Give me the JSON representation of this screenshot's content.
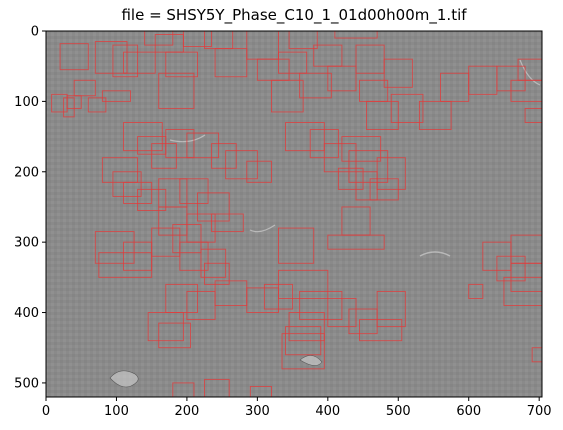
{
  "title": "file = SHSY5Y_Phase_C10_1_01d00h00m_1.tif",
  "colors": {
    "box": "#e03c3c",
    "background": "#8b8b8b"
  },
  "chart_data": {
    "type": "image-with-bounding-boxes",
    "xlim": [
      0,
      704
    ],
    "ylim": [
      520,
      0
    ],
    "x_ticks": [
      0,
      100,
      200,
      300,
      400,
      500,
      600,
      700
    ],
    "y_ticks": [
      0,
      100,
      200,
      300,
      400,
      500
    ],
    "boxes": [
      [
        20,
        18,
        60,
        55
      ],
      [
        70,
        15,
        115,
        60
      ],
      [
        95,
        20,
        130,
        65
      ],
      [
        140,
        0,
        180,
        20
      ],
      [
        155,
        5,
        195,
        30
      ],
      [
        195,
        0,
        235,
        22
      ],
      [
        110,
        30,
        155,
        60
      ],
      [
        170,
        30,
        215,
        65
      ],
      [
        160,
        60,
        210,
        110
      ],
      [
        40,
        70,
        70,
        92
      ],
      [
        80,
        85,
        120,
        100
      ],
      [
        8,
        90,
        30,
        115
      ],
      [
        25,
        95,
        40,
        122
      ],
      [
        30,
        92,
        50,
        110
      ],
      [
        60,
        95,
        85,
        115
      ],
      [
        225,
        0,
        265,
        25
      ],
      [
        240,
        25,
        285,
        65
      ],
      [
        285,
        0,
        330,
        40
      ],
      [
        300,
        40,
        345,
        70
      ],
      [
        330,
        30,
        370,
        60
      ],
      [
        345,
        0,
        385,
        25
      ],
      [
        380,
        20,
        420,
        50
      ],
      [
        410,
        0,
        470,
        10
      ],
      [
        440,
        20,
        480,
        60
      ],
      [
        480,
        40,
        520,
        80
      ],
      [
        400,
        50,
        440,
        85
      ],
      [
        360,
        60,
        405,
        95
      ],
      [
        320,
        70,
        365,
        115
      ],
      [
        445,
        70,
        485,
        100
      ],
      [
        455,
        100,
        500,
        140
      ],
      [
        490,
        90,
        535,
        130
      ],
      [
        530,
        100,
        575,
        140
      ],
      [
        560,
        60,
        600,
        100
      ],
      [
        600,
        50,
        640,
        90
      ],
      [
        640,
        50,
        680,
        85
      ],
      [
        670,
        40,
        704,
        70
      ],
      [
        660,
        70,
        704,
        100
      ],
      [
        680,
        110,
        704,
        130
      ],
      [
        110,
        130,
        165,
        170
      ],
      [
        130,
        150,
        170,
        175
      ],
      [
        150,
        160,
        185,
        195
      ],
      [
        170,
        140,
        210,
        180
      ],
      [
        200,
        145,
        245,
        180
      ],
      [
        235,
        160,
        270,
        195
      ],
      [
        255,
        170,
        300,
        210
      ],
      [
        285,
        185,
        320,
        215
      ],
      [
        80,
        180,
        130,
        215
      ],
      [
        95,
        200,
        135,
        235
      ],
      [
        110,
        215,
        150,
        245
      ],
      [
        130,
        225,
        170,
        255
      ],
      [
        160,
        210,
        200,
        250
      ],
      [
        190,
        210,
        230,
        245
      ],
      [
        215,
        230,
        260,
        270
      ],
      [
        235,
        260,
        280,
        285
      ],
      [
        200,
        260,
        240,
        300
      ],
      [
        160,
        250,
        200,
        290
      ],
      [
        180,
        275,
        220,
        315
      ],
      [
        190,
        300,
        230,
        340
      ],
      [
        220,
        310,
        255,
        350
      ],
      [
        225,
        330,
        260,
        360
      ],
      [
        240,
        355,
        285,
        390
      ],
      [
        70,
        285,
        125,
        330
      ],
      [
        110,
        300,
        150,
        340
      ],
      [
        75,
        315,
        150,
        350
      ],
      [
        150,
        280,
        190,
        320
      ],
      [
        170,
        360,
        215,
        400
      ],
      [
        200,
        370,
        240,
        410
      ],
      [
        145,
        400,
        195,
        440
      ],
      [
        160,
        415,
        205,
        450
      ],
      [
        340,
        130,
        395,
        170
      ],
      [
        375,
        140,
        415,
        180
      ],
      [
        395,
        160,
        440,
        200
      ],
      [
        420,
        150,
        475,
        185
      ],
      [
        430,
        170,
        485,
        215
      ],
      [
        470,
        180,
        510,
        225
      ],
      [
        440,
        200,
        470,
        240
      ],
      [
        415,
        195,
        450,
        225
      ],
      [
        460,
        210,
        500,
        240
      ],
      [
        420,
        250,
        460,
        290
      ],
      [
        400,
        290,
        480,
        310
      ],
      [
        330,
        280,
        380,
        330
      ],
      [
        330,
        340,
        400,
        380
      ],
      [
        310,
        360,
        350,
        395
      ],
      [
        285,
        365,
        330,
        400
      ],
      [
        360,
        370,
        420,
        410
      ],
      [
        400,
        380,
        440,
        420
      ],
      [
        430,
        395,
        470,
        430
      ],
      [
        445,
        410,
        505,
        440
      ],
      [
        345,
        400,
        395,
        440
      ],
      [
        340,
        420,
        390,
        460
      ],
      [
        335,
        430,
        395,
        480
      ],
      [
        470,
        370,
        510,
        420
      ],
      [
        620,
        300,
        660,
        340
      ],
      [
        660,
        290,
        704,
        330
      ],
      [
        640,
        320,
        680,
        355
      ],
      [
        660,
        330,
        704,
        370
      ],
      [
        650,
        350,
        704,
        390
      ],
      [
        600,
        360,
        620,
        380
      ],
      [
        690,
        450,
        704,
        470
      ],
      [
        180,
        500,
        210,
        520
      ],
      [
        225,
        495,
        260,
        520
      ],
      [
        290,
        505,
        320,
        520
      ]
    ]
  }
}
